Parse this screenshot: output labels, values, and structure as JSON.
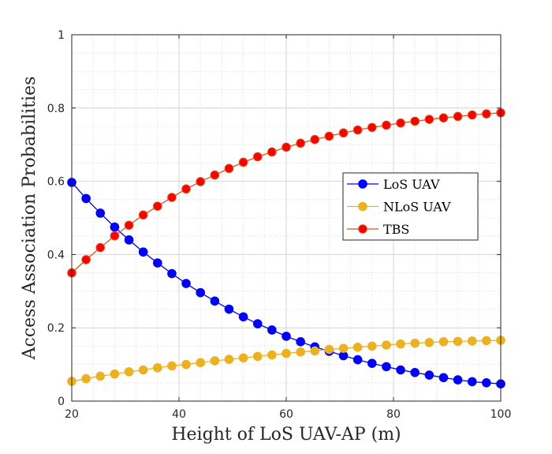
{
  "chart_data": {
    "type": "line",
    "title": "",
    "xlabel": "Height of LoS UAV-AP (m)",
    "ylabel": "Access Association Probabilities",
    "xlim": [
      20,
      100
    ],
    "ylim": [
      0,
      1
    ],
    "x_ticks": [
      20,
      40,
      60,
      80,
      100
    ],
    "y_ticks": [
      0,
      0.2,
      0.4,
      0.6,
      0.8,
      1
    ],
    "x_tick_labels": [
      "20",
      "40",
      "60",
      "80",
      "100"
    ],
    "y_tick_labels": [
      "0",
      "0.2",
      "0.4",
      "0.6",
      "0.8",
      "1"
    ],
    "grid": true,
    "legend_position": "right-middle",
    "x": [
      20,
      22.67,
      25.33,
      28,
      30.67,
      33.33,
      36,
      38.67,
      41.33,
      44,
      46.67,
      49.33,
      52,
      54.67,
      57.33,
      60,
      62.67,
      65.33,
      68,
      70.67,
      73.33,
      76,
      78.67,
      81.33,
      84,
      86.67,
      89.33,
      92,
      94.67,
      97.33,
      100
    ],
    "series": [
      {
        "name": "LoS UAV",
        "color": "#0000ff",
        "values": [
          0.597,
          0.553,
          0.513,
          0.475,
          0.44,
          0.407,
          0.377,
          0.348,
          0.321,
          0.296,
          0.273,
          0.251,
          0.23,
          0.211,
          0.194,
          0.177,
          0.162,
          0.148,
          0.136,
          0.124,
          0.113,
          0.103,
          0.094,
          0.085,
          0.078,
          0.071,
          0.064,
          0.058,
          0.053,
          0.05,
          0.047
        ]
      },
      {
        "name": "NLoS UAV",
        "color": "#edb120",
        "values": [
          0.054,
          0.061,
          0.068,
          0.074,
          0.08,
          0.085,
          0.091,
          0.096,
          0.1,
          0.105,
          0.11,
          0.114,
          0.118,
          0.122,
          0.126,
          0.13,
          0.134,
          0.137,
          0.141,
          0.144,
          0.147,
          0.15,
          0.153,
          0.156,
          0.158,
          0.16,
          0.162,
          0.163,
          0.164,
          0.165,
          0.166
        ]
      },
      {
        "name": "TBS",
        "color": "#d95319",
        "marker_fill": "#ff0000",
        "values": [
          0.35,
          0.386,
          0.419,
          0.451,
          0.48,
          0.508,
          0.532,
          0.556,
          0.579,
          0.599,
          0.617,
          0.635,
          0.652,
          0.667,
          0.68,
          0.693,
          0.704,
          0.714,
          0.723,
          0.732,
          0.74,
          0.747,
          0.753,
          0.759,
          0.764,
          0.769,
          0.773,
          0.777,
          0.781,
          0.784,
          0.787
        ]
      }
    ]
  }
}
